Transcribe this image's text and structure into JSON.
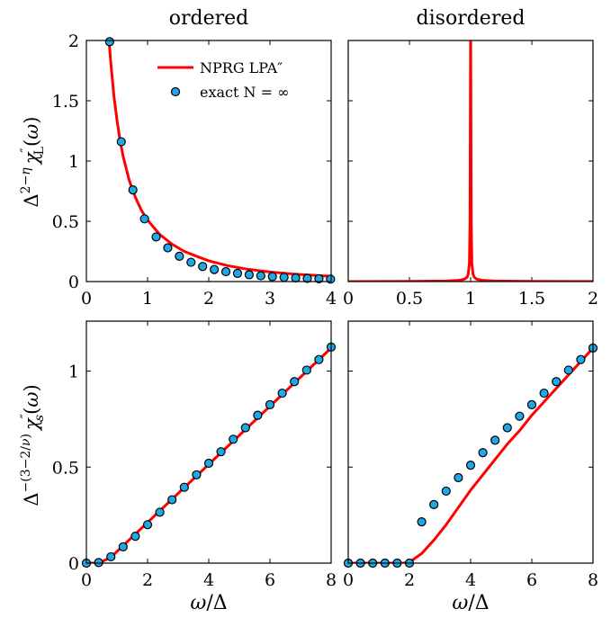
{
  "colors": {
    "curve": "#ff0000",
    "marker_fill": "#1fa8e6",
    "marker_edge": "#000000"
  },
  "legend": {
    "curve_label": "NPRG LPA″",
    "marker_label": "exact N = ∞",
    "placement": "top-right of top-left panel"
  },
  "column_titles": [
    "ordered",
    "disordered"
  ],
  "row_ylabels": [
    "Δ²⁻η χ″_L(ω)",
    "Δ⁻⁽³⁻²ᐟν⁾ χ″_s(ω)"
  ],
  "xlabel": "ω/Δ",
  "chart_data": [
    {
      "type": "line",
      "panel": "top-left",
      "title": "ordered",
      "xlim": [
        0,
        4
      ],
      "ylim": [
        0,
        2
      ],
      "xticks": [
        0,
        1,
        2,
        3,
        4
      ],
      "xtick_labels": [
        "0",
        "1",
        "2",
        "3",
        "4"
      ],
      "yticks": [
        0,
        0.5,
        1,
        1.5,
        2
      ],
      "ytick_labels": [
        "0",
        "0.5",
        "1",
        "1.5",
        "2"
      ],
      "series": [
        {
          "name": "NPRG LPA″",
          "kind": "line",
          "x": [
            0.37,
            0.4,
            0.45,
            0.5,
            0.55,
            0.6,
            0.7,
            0.8,
            0.9,
            1.0,
            1.2,
            1.4,
            1.6,
            1.8,
            2.0,
            2.3,
            2.6,
            3.0,
            3.4,
            3.8,
            4.0
          ],
          "y": [
            2.0,
            1.81,
            1.54,
            1.34,
            1.17,
            1.04,
            0.84,
            0.7,
            0.59,
            0.51,
            0.39,
            0.31,
            0.25,
            0.21,
            0.172,
            0.133,
            0.105,
            0.079,
            0.062,
            0.049,
            0.044
          ]
        },
        {
          "name": "exact N = ∞",
          "kind": "scatter",
          "x": [
            0.38,
            0.57,
            0.76,
            0.95,
            1.14,
            1.33,
            1.52,
            1.71,
            1.9,
            2.09,
            2.28,
            2.47,
            2.66,
            2.85,
            3.04,
            3.23,
            3.42,
            3.61,
            3.8,
            3.99
          ],
          "y": [
            1.99,
            1.16,
            0.76,
            0.52,
            0.37,
            0.28,
            0.21,
            0.16,
            0.125,
            0.1,
            0.082,
            0.068,
            0.057,
            0.048,
            0.041,
            0.035,
            0.03,
            0.026,
            0.023,
            0.02
          ]
        }
      ]
    },
    {
      "type": "line",
      "panel": "top-right",
      "title": "disordered",
      "xlim": [
        0,
        2
      ],
      "ylim": [
        0,
        2
      ],
      "xticks": [
        0,
        0.5,
        1,
        1.5,
        2
      ],
      "xtick_labels": [
        "0",
        "0.5",
        "1",
        "1.5",
        "2"
      ],
      "yticks": [
        0,
        0.5,
        1,
        1.5,
        2
      ],
      "ytick_labels": [],
      "series": [
        {
          "name": "NPRG LPA″",
          "kind": "line",
          "x": [
            0,
            0.5,
            0.8,
            0.9,
            0.95,
            0.97,
            0.98,
            0.99,
            0.995,
            1.0,
            1.005,
            1.01,
            1.02,
            1.03,
            1.05,
            1.1,
            1.2,
            1.5,
            2.0
          ],
          "y": [
            0.0,
            0.002,
            0.005,
            0.01,
            0.02,
            0.035,
            0.06,
            0.15,
            0.5,
            2.2,
            0.5,
            0.15,
            0.06,
            0.035,
            0.02,
            0.01,
            0.005,
            0.002,
            0.001
          ]
        }
      ]
    },
    {
      "type": "line",
      "panel": "bottom-left",
      "xlim": [
        0,
        8
      ],
      "ylim": [
        0,
        1.26
      ],
      "xticks": [
        0,
        2,
        4,
        6,
        8
      ],
      "xtick_labels": [
        "0",
        "2",
        "4",
        "6",
        "8"
      ],
      "yticks": [
        0,
        0.5,
        1
      ],
      "ytick_labels": [
        "0",
        "0.5",
        "1"
      ],
      "series": [
        {
          "name": "NPRG LPA″",
          "kind": "line",
          "x": [
            0,
            0.4,
            0.8,
            8.0
          ],
          "y": [
            0,
            0.0,
            0.03,
            1.12
          ]
        },
        {
          "name": "exact N = ∞",
          "kind": "scatter",
          "x": [
            0,
            0.4,
            0.8,
            1.2,
            1.6,
            2.0,
            2.4,
            2.8,
            3.2,
            3.6,
            4.0,
            4.4,
            4.8,
            5.2,
            5.6,
            6.0,
            6.4,
            6.8,
            7.2,
            7.6,
            8.0
          ],
          "y": [
            0,
            0.003,
            0.033,
            0.085,
            0.14,
            0.2,
            0.265,
            0.33,
            0.395,
            0.46,
            0.52,
            0.58,
            0.645,
            0.705,
            0.77,
            0.825,
            0.885,
            0.945,
            1.005,
            1.06,
            1.125
          ]
        }
      ]
    },
    {
      "type": "line",
      "panel": "bottom-right",
      "xlim": [
        0,
        8
      ],
      "ylim": [
        0,
        1.26
      ],
      "xticks": [
        0,
        2,
        4,
        6,
        8
      ],
      "xtick_labels": [
        "0",
        "2",
        "4",
        "6",
        "8"
      ],
      "yticks": [
        0,
        0.5,
        1
      ],
      "ytick_labels": [],
      "series": [
        {
          "name": "NPRG LPA″",
          "kind": "line",
          "x": [
            0,
            1.8,
            2.0,
            2.4,
            2.8,
            3.2,
            3.6,
            4.0,
            4.4,
            4.8,
            5.2,
            5.6,
            6.0,
            6.4,
            6.8,
            7.2,
            7.6,
            8.0
          ],
          "y": [
            0,
            0,
            0.005,
            0.05,
            0.12,
            0.2,
            0.29,
            0.38,
            0.46,
            0.54,
            0.62,
            0.69,
            0.77,
            0.84,
            0.91,
            0.98,
            1.05,
            1.12
          ]
        },
        {
          "name": "exact N = ∞",
          "kind": "scatter",
          "x": [
            0,
            0.4,
            0.8,
            1.2,
            1.6,
            2.0,
            2.4,
            2.8,
            3.2,
            3.6,
            4.0,
            4.4,
            4.8,
            5.2,
            5.6,
            6.0,
            6.4,
            6.8,
            7.2,
            7.6,
            8.0
          ],
          "y": [
            0,
            0,
            0,
            0,
            0,
            0,
            0.215,
            0.305,
            0.375,
            0.445,
            0.51,
            0.575,
            0.64,
            0.705,
            0.765,
            0.825,
            0.885,
            0.945,
            1.005,
            1.06,
            1.12
          ]
        }
      ]
    }
  ]
}
